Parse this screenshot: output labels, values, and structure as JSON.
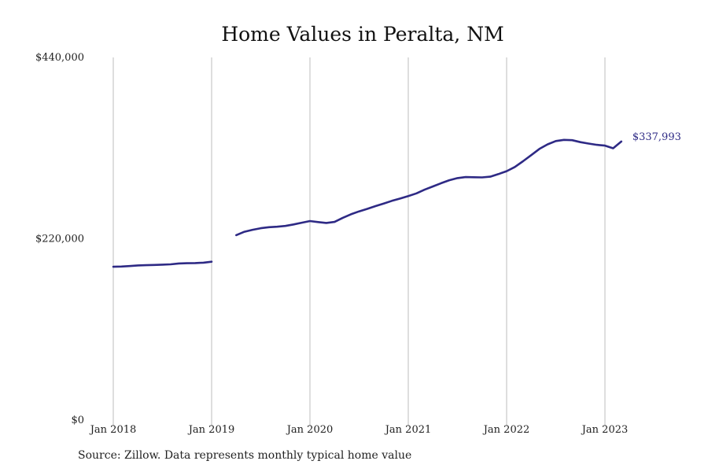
{
  "chart_data": {
    "type": "line",
    "title": "Home Values in Peralta, NM",
    "xlabel": "",
    "ylabel": "",
    "ylim": [
      0,
      440000
    ],
    "y_ticks": [
      0,
      220000,
      440000
    ],
    "y_tick_labels": [
      "$0",
      "$220,000",
      "$440,000"
    ],
    "x_ticks": [
      "2018-01",
      "2019-01",
      "2020-01",
      "2021-01",
      "2022-01",
      "2023-01"
    ],
    "x_tick_labels": [
      "Jan 2018",
      "Jan 2019",
      "Jan 2020",
      "Jan 2021",
      "Jan 2022",
      "Jan 2023"
    ],
    "x_range": [
      "2018-01",
      "2024-01"
    ],
    "grid": "vertical",
    "line_color": "#2e2a85",
    "end_label": "$337,993",
    "series": [
      {
        "name": "",
        "segments": [
          [
            [
              "2018-01",
              186000
            ],
            [
              "2018-02",
              186300
            ],
            [
              "2018-03",
              186900
            ],
            [
              "2018-04",
              187600
            ],
            [
              "2018-05",
              187900
            ],
            [
              "2018-06",
              188200
            ],
            [
              "2018-07",
              188600
            ],
            [
              "2018-08",
              189000
            ],
            [
              "2018-09",
              190000
            ],
            [
              "2018-10",
              190300
            ],
            [
              "2018-11",
              190500
            ],
            [
              "2018-12",
              191000
            ],
            [
              "2019-01",
              192100
            ]
          ],
          [
            [
              "2019-04",
              224400
            ],
            [
              "2019-05",
              228500
            ],
            [
              "2019-06",
              230900
            ],
            [
              "2019-07",
              232800
            ],
            [
              "2019-08",
              234000
            ],
            [
              "2019-09",
              234600
            ],
            [
              "2019-10",
              235600
            ],
            [
              "2019-11",
              237400
            ],
            [
              "2019-12",
              239500
            ],
            [
              "2020-01",
              241500
            ],
            [
              "2020-02",
              240200
            ],
            [
              "2020-03",
              239200
            ],
            [
              "2020-04",
              240400
            ],
            [
              "2020-05",
              245400
            ],
            [
              "2020-06",
              249700
            ],
            [
              "2020-07",
              253200
            ],
            [
              "2020-08",
              256300
            ],
            [
              "2020-09",
              259600
            ],
            [
              "2020-10",
              262800
            ],
            [
              "2020-11",
              266000
            ],
            [
              "2020-12",
              268800
            ],
            [
              "2021-01",
              271800
            ],
            [
              "2021-02",
              275100
            ],
            [
              "2021-03",
              279600
            ],
            [
              "2021-04",
              283500
            ],
            [
              "2021-05",
              287400
            ],
            [
              "2021-06",
              291000
            ],
            [
              "2021-07",
              293600
            ],
            [
              "2021-08",
              294800
            ],
            [
              "2021-09",
              294600
            ],
            [
              "2021-10",
              294400
            ],
            [
              "2021-11",
              295300
            ],
            [
              "2021-12",
              298500
            ],
            [
              "2022-01",
              302000
            ],
            [
              "2022-02",
              307000
            ],
            [
              "2022-03",
              314000
            ],
            [
              "2022-04",
              321500
            ],
            [
              "2022-05",
              329000
            ],
            [
              "2022-06",
              334500
            ],
            [
              "2022-07",
              338500
            ],
            [
              "2022-08",
              340000
            ],
            [
              "2022-09",
              339600
            ],
            [
              "2022-10",
              337200
            ],
            [
              "2022-11",
              335500
            ],
            [
              "2022-12",
              334000
            ],
            [
              "2023-01",
              333000
            ],
            [
              "2023-02",
              329800
            ],
            [
              "2023-03",
              337993
            ]
          ]
        ]
      }
    ]
  },
  "footer": {
    "source": "Source: Zillow. Data represents monthly typical home value"
  }
}
